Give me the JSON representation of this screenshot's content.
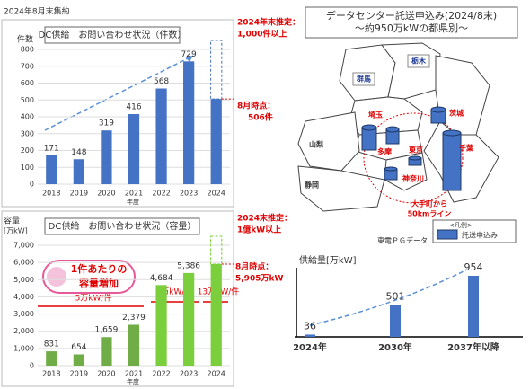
{
  "header": "2024年8月末集約",
  "chart_data": [
    {
      "type": "bar",
      "title": "DC供給　お問い合わせ状況（件数）",
      "ylabel": "件数",
      "xlabel": "年度",
      "categories": [
        "2018",
        "2019",
        "2020",
        "2021",
        "2022",
        "2023",
        "2024"
      ],
      "values": [
        171,
        148,
        319,
        416,
        568,
        729,
        506
      ],
      "value_labels": [
        "171",
        "148",
        "319",
        "416",
        "568",
        "729",
        null
      ],
      "colors": [
        "#4472c4",
        "#4472c4",
        "#4472c4",
        "#4472c4",
        "#4472c4",
        "#4472c4",
        "#4472c4"
      ],
      "ylim": [
        0,
        800
      ],
      "yticks": [
        0,
        100,
        200,
        300,
        400,
        500,
        600,
        700,
        800
      ],
      "grid": true,
      "annotations": [
        "2024年末推定：",
        "1,000件以上",
        "8月時点：",
        "506件"
      ]
    },
    {
      "type": "bar",
      "title": "DC供給　お問い合わせ状況（容量）",
      "ylabel": "容量",
      "ylabel_unit": "[万kW]",
      "xlabel": "年度",
      "categories": [
        "2018",
        "2019",
        "2020",
        "2021",
        "2022",
        "2023",
        "2024"
      ],
      "values": [
        831,
        654,
        1659,
        2379,
        4684,
        5386,
        5905
      ],
      "value_labels": [
        "831",
        "654",
        "1,659",
        "2,379",
        "4,684",
        "5,386",
        null
      ],
      "colors": [
        "#70ad47",
        "#70ad47",
        "#70ad47",
        "#70ad47",
        "#7ccf3c",
        "#7ccf3c",
        "#7ccf3c"
      ],
      "ylim": [
        0,
        7000
      ],
      "yticks": [
        0,
        {
          "value": 1000,
          "label": "1,000"
        },
        {
          "value": 2000,
          "label": "2,000"
        },
        {
          "value": 3000,
          "label": "3,000"
        },
        {
          "value": 4000,
          "label": "4,000"
        },
        {
          "value": 5000,
          "label": "5,000"
        },
        {
          "value": 6000,
          "label": "6,000"
        },
        {
          "value": 7000,
          "label": "7,000"
        }
      ],
      "grid": true,
      "annotations": [
        "2024末推定：",
        "1億kW以上",
        "8月時点：",
        "5,905万kW",
        "1件あたりの",
        "容量増加",
        "5万kW/件",
        "8万kW/件",
        "13万kW/件"
      ]
    },
    {
      "type": "bar",
      "ylabel": "供給量[万kW]",
      "categories": [
        "2024年",
        "2030年",
        "2037年以降"
      ],
      "values": [
        36,
        501,
        954
      ],
      "color": "#4472c4"
    }
  ],
  "map": {
    "title": "データセンター託送申込み(2024/8末)",
    "subtitle": "～約950万kWの都県別～",
    "labels": [
      "群馬",
      "栃木",
      "埼玉",
      "茨城",
      "山梨",
      "東京",
      "千葉",
      "多摩",
      "神奈川",
      "静岡",
      "大手町から",
      "50kmライン"
    ],
    "legend_title": "<凡例>",
    "legend_label": "託送申込み",
    "source": "東電ＰＧデータ"
  }
}
